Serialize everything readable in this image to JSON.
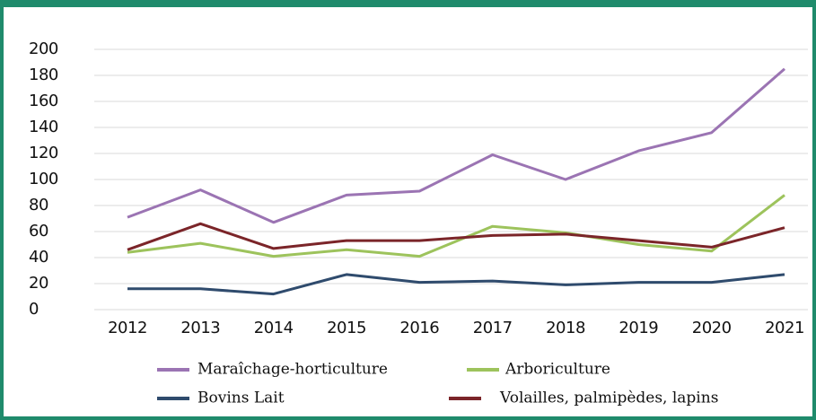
{
  "chart_data": {
    "type": "line",
    "categories": [
      "2012",
      "2013",
      "2014",
      "2015",
      "2016",
      "2017",
      "2018",
      "2019",
      "2020",
      "2021"
    ],
    "series": [
      {
        "name": "Maraîchage-horticulture",
        "color": "#9b74b3",
        "values": [
          71,
          92,
          67,
          88,
          91,
          119,
          100,
          122,
          136,
          185
        ]
      },
      {
        "name": "Arboriculture",
        "color": "#9dc35c",
        "values": [
          44,
          51,
          41,
          46,
          41,
          64,
          59,
          50,
          45,
          88
        ]
      },
      {
        "name": "Bovins Lait",
        "color": "#2f4b6d",
        "values": [
          16,
          16,
          12,
          27,
          21,
          22,
          19,
          21,
          21,
          27
        ]
      },
      {
        "name": "Volailles, palmipèdes, lapins",
        "color": "#7b2529",
        "values": [
          46,
          66,
          47,
          53,
          53,
          57,
          58,
          53,
          48,
          63
        ]
      }
    ],
    "ylim": [
      0,
      200
    ],
    "yticks": [
      0,
      20,
      40,
      60,
      80,
      100,
      120,
      140,
      160,
      180,
      200
    ],
    "grid": true
  }
}
